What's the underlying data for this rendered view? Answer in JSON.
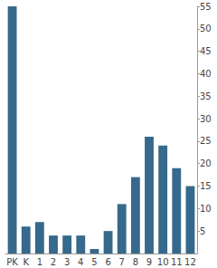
{
  "chart_data": {
    "type": "bar",
    "categories": [
      "PK",
      "K",
      "1",
      "2",
      "3",
      "4",
      "5",
      "6",
      "7",
      "8",
      "9",
      "10",
      "11",
      "12"
    ],
    "values": [
      55,
      6,
      7,
      4,
      4,
      4,
      1,
      5,
      11,
      17,
      26,
      24,
      19,
      15
    ],
    "color": "#36698c",
    "ylim": [
      0,
      55
    ],
    "yticks": [
      5,
      10,
      15,
      20,
      25,
      30,
      35,
      40,
      45,
      50,
      55
    ],
    "grid": false
  }
}
